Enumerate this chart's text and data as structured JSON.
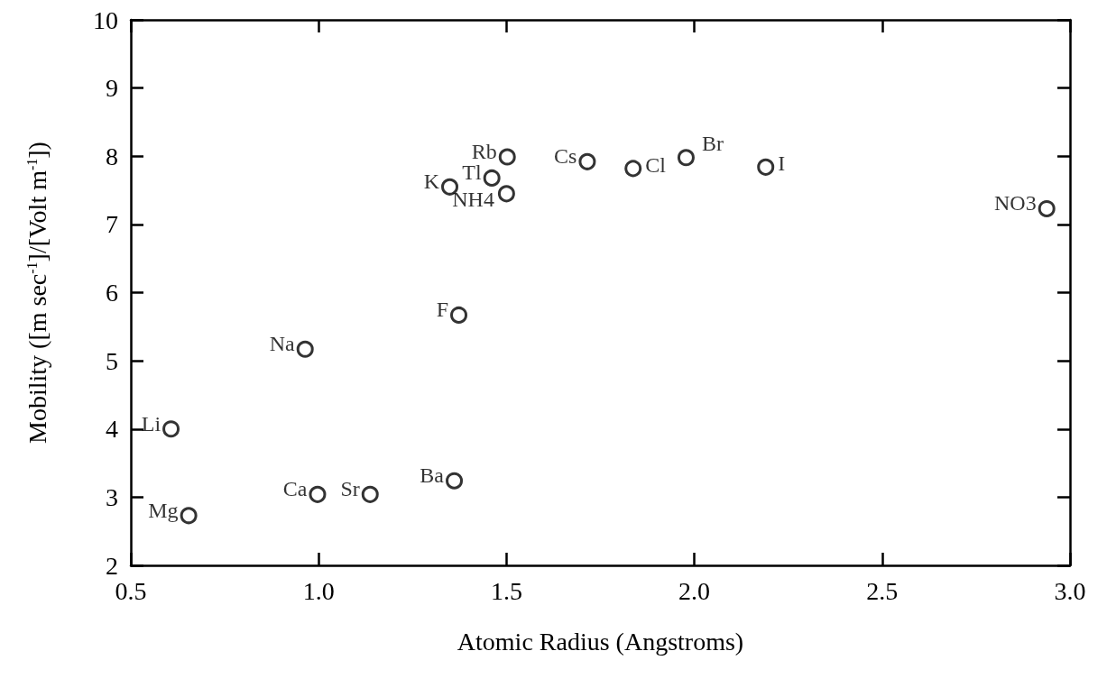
{
  "chart_data": {
    "type": "scatter",
    "xlabel": "Atomic Radius (Angstroms)",
    "ylabel": "Mobility ([m sec$^{-1}$]/[Volt m$^{-1}$])",
    "x": [
      0.607,
      0.654,
      0.964,
      0.997,
      1.137,
      1.361,
      1.373,
      1.502,
      1.461,
      1.349,
      1.5,
      1.715,
      1.837,
      1.978,
      2.19,
      2.938
    ],
    "series": [
      {
        "color": "#000000",
        "values": [
          4.0,
          2.73,
          5.17,
          3.04,
          3.04,
          3.24,
          5.67,
          7.99,
          7.68,
          7.55,
          7.45,
          7.92,
          7.82,
          7.98,
          7.84,
          7.23
        ]
      }
    ],
    "annotations": [
      {
        "text": "Li",
        "x": 0.607,
        "y": 4.0
      },
      {
        "text": "Mg",
        "x": 0.654,
        "y": 2.73
      },
      {
        "text": "Na",
        "x": 0.964,
        "y": 5.17
      },
      {
        "text": "Ca",
        "x": 0.997,
        "y": 3.04
      },
      {
        "text": "Sr",
        "x": 1.137,
        "y": 3.04
      },
      {
        "text": "Ba",
        "x": 1.361,
        "y": 3.24
      },
      {
        "text": "F",
        "x": 1.373,
        "y": 5.67
      },
      {
        "text": "Rb",
        "x": 1.502,
        "y": 7.99
      },
      {
        "text": "Tl",
        "x": 1.461,
        "y": 7.68
      },
      {
        "text": "K",
        "x": 1.349,
        "y": 7.55
      },
      {
        "text": "NH4",
        "x": 1.5,
        "y": 7.45
      },
      {
        "text": "Cs",
        "x": 1.715,
        "y": 7.92
      },
      {
        "text": "Cl",
        "x": 1.837,
        "y": 7.82
      },
      {
        "text": "Br",
        "x": 1.978,
        "y": 7.98
      },
      {
        "text": "I",
        "x": 2.19,
        "y": 7.84
      },
      {
        "text": "NO3",
        "x": 2.938,
        "y": 7.23
      }
    ],
    "xlim": [
      0.5,
      3.0
    ],
    "xticks": [
      {
        "value": 0.5,
        "label": "0.5"
      },
      {
        "value": 1,
        "label": "1.0"
      },
      {
        "value": 1.5,
        "label": "1.5"
      },
      {
        "value": 2,
        "label": "2.0"
      },
      {
        "value": 2.5,
        "label": "2.5"
      },
      {
        "value": 3,
        "label": "3.0"
      }
    ],
    "ylim": [
      2,
      10
    ],
    "yticks": [
      2,
      3,
      4,
      5,
      6,
      7,
      8,
      9,
      10
    ],
    "marker": "circle",
    "grid": false
  }
}
